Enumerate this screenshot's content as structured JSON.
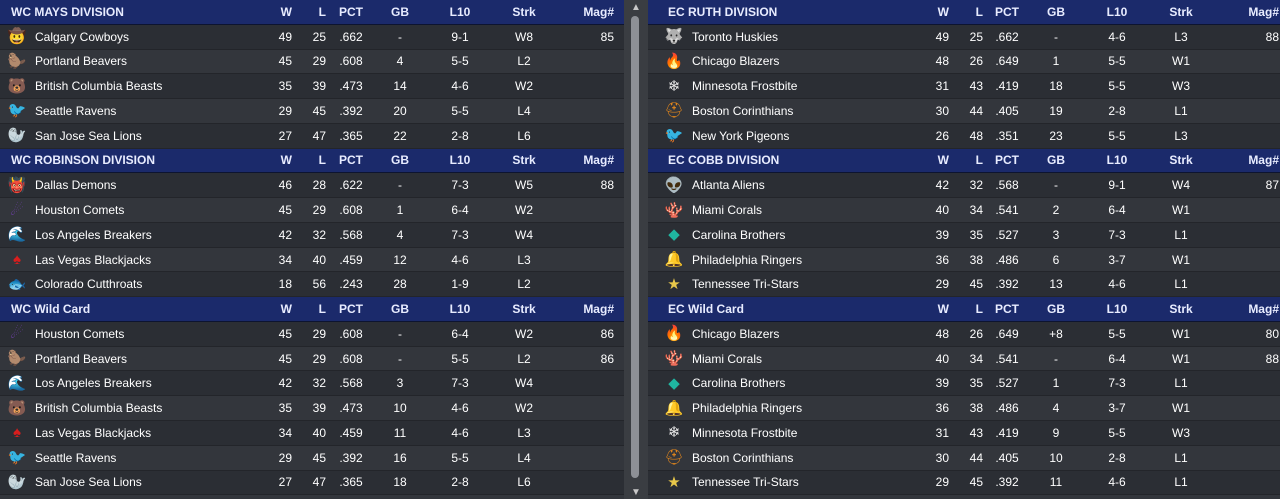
{
  "columns": {
    "w": "W",
    "l": "L",
    "pct": "PCT",
    "gb": "GB",
    "l10": "L10",
    "strk": "Strk",
    "mag": "Mag#"
  },
  "left_sections": [
    {
      "title": "WC MAYS DIVISION",
      "teams": [
        {
          "logo": "🤠",
          "name": "Calgary Cowboys",
          "w": "49",
          "l": "25",
          "pct": ".662",
          "gb": "-",
          "l10": "9-1",
          "strk": "W8",
          "mag": "85"
        },
        {
          "logo": "🦫",
          "name": "Portland Beavers",
          "w": "45",
          "l": "29",
          "pct": ".608",
          "gb": "4",
          "l10": "5-5",
          "strk": "L2",
          "mag": ""
        },
        {
          "logo": "🐻",
          "name": "British Columbia Beasts",
          "w": "35",
          "l": "39",
          "pct": ".473",
          "gb": "14",
          "l10": "4-6",
          "strk": "W2",
          "mag": ""
        },
        {
          "logo": "🐦",
          "name": "Seattle Ravens",
          "w": "29",
          "l": "45",
          "pct": ".392",
          "gb": "20",
          "l10": "5-5",
          "strk": "L4",
          "mag": ""
        },
        {
          "logo": "🦭",
          "name": "San Jose Sea Lions",
          "w": "27",
          "l": "47",
          "pct": ".365",
          "gb": "22",
          "l10": "2-8",
          "strk": "L6",
          "mag": ""
        }
      ]
    },
    {
      "title": "WC ROBINSON DIVISION",
      "teams": [
        {
          "logo": "👹",
          "name": "Dallas Demons",
          "w": "46",
          "l": "28",
          "pct": ".622",
          "gb": "-",
          "l10": "7-3",
          "strk": "W5",
          "mag": "88"
        },
        {
          "logo": "☄",
          "name": "Houston Comets",
          "w": "45",
          "l": "29",
          "pct": ".608",
          "gb": "1",
          "l10": "6-4",
          "strk": "W2",
          "mag": ""
        },
        {
          "logo": "🌊",
          "name": "Los Angeles Breakers",
          "w": "42",
          "l": "32",
          "pct": ".568",
          "gb": "4",
          "l10": "7-3",
          "strk": "W4",
          "mag": ""
        },
        {
          "logo": "♠",
          "name": "Las Vegas Blackjacks",
          "w": "34",
          "l": "40",
          "pct": ".459",
          "gb": "12",
          "l10": "4-6",
          "strk": "L3",
          "mag": ""
        },
        {
          "logo": "🐟",
          "name": "Colorado Cutthroats",
          "w": "18",
          "l": "56",
          "pct": ".243",
          "gb": "28",
          "l10": "1-9",
          "strk": "L2",
          "mag": ""
        }
      ]
    },
    {
      "title": "WC  Wild Card",
      "teams": [
        {
          "logo": "☄",
          "name": "Houston Comets",
          "w": "45",
          "l": "29",
          "pct": ".608",
          "gb": "-",
          "l10": "6-4",
          "strk": "W2",
          "mag": "86"
        },
        {
          "logo": "🦫",
          "name": "Portland Beavers",
          "w": "45",
          "l": "29",
          "pct": ".608",
          "gb": "-",
          "l10": "5-5",
          "strk": "L2",
          "mag": "86"
        },
        {
          "logo": "🌊",
          "name": "Los Angeles Breakers",
          "w": "42",
          "l": "32",
          "pct": ".568",
          "gb": "3",
          "l10": "7-3",
          "strk": "W4",
          "mag": ""
        },
        {
          "logo": "🐻",
          "name": "British Columbia Beasts",
          "w": "35",
          "l": "39",
          "pct": ".473",
          "gb": "10",
          "l10": "4-6",
          "strk": "W2",
          "mag": ""
        },
        {
          "logo": "♠",
          "name": "Las Vegas Blackjacks",
          "w": "34",
          "l": "40",
          "pct": ".459",
          "gb": "11",
          "l10": "4-6",
          "strk": "L3",
          "mag": ""
        },
        {
          "logo": "🐦",
          "name": "Seattle Ravens",
          "w": "29",
          "l": "45",
          "pct": ".392",
          "gb": "16",
          "l10": "5-5",
          "strk": "L4",
          "mag": ""
        },
        {
          "logo": "🦭",
          "name": "San Jose Sea Lions",
          "w": "27",
          "l": "47",
          "pct": ".365",
          "gb": "18",
          "l10": "2-8",
          "strk": "L6",
          "mag": ""
        },
        {
          "logo": "🐟",
          "name": "Colorado Cutthroats",
          "w": "18",
          "l": "56",
          "pct": ".243",
          "gb": "27",
          "l10": "1-9",
          "strk": "L2",
          "mag": ""
        }
      ]
    }
  ],
  "right_sections": [
    {
      "title": "EC RUTH DIVISION",
      "teams": [
        {
          "logo": "🐺",
          "name": "Toronto Huskies",
          "w": "49",
          "l": "25",
          "pct": ".662",
          "gb": "-",
          "l10": "4-6",
          "strk": "L3",
          "mag": "88"
        },
        {
          "logo": "🔥",
          "name": "Chicago Blazers",
          "w": "48",
          "l": "26",
          "pct": ".649",
          "gb": "1",
          "l10": "5-5",
          "strk": "W1",
          "mag": ""
        },
        {
          "logo": "❄",
          "name": "Minnesota Frostbite",
          "w": "31",
          "l": "43",
          "pct": ".419",
          "gb": "18",
          "l10": "5-5",
          "strk": "W3",
          "mag": ""
        },
        {
          "logo": "⛑",
          "name": "Boston Corinthians",
          "w": "30",
          "l": "44",
          "pct": ".405",
          "gb": "19",
          "l10": "2-8",
          "strk": "L1",
          "mag": ""
        },
        {
          "logo": "🐦",
          "name": "New York Pigeons",
          "w": "26",
          "l": "48",
          "pct": ".351",
          "gb": "23",
          "l10": "5-5",
          "strk": "L3",
          "mag": ""
        }
      ]
    },
    {
      "title": "EC COBB DIVISION",
      "teams": [
        {
          "logo": "👽",
          "name": "Atlanta Aliens",
          "w": "42",
          "l": "32",
          "pct": ".568",
          "gb": "-",
          "l10": "9-1",
          "strk": "W4",
          "mag": "87"
        },
        {
          "logo": "🪸",
          "name": "Miami Corals",
          "w": "40",
          "l": "34",
          "pct": ".541",
          "gb": "2",
          "l10": "6-4",
          "strk": "W1",
          "mag": ""
        },
        {
          "logo": "◆",
          "name": "Carolina Brothers",
          "w": "39",
          "l": "35",
          "pct": ".527",
          "gb": "3",
          "l10": "7-3",
          "strk": "L1",
          "mag": ""
        },
        {
          "logo": "🔔",
          "name": "Philadelphia Ringers",
          "w": "36",
          "l": "38",
          "pct": ".486",
          "gb": "6",
          "l10": "3-7",
          "strk": "W1",
          "mag": ""
        },
        {
          "logo": "★",
          "name": "Tennessee Tri-Stars",
          "w": "29",
          "l": "45",
          "pct": ".392",
          "gb": "13",
          "l10": "4-6",
          "strk": "L1",
          "mag": ""
        }
      ]
    },
    {
      "title": "EC  Wild Card",
      "teams": [
        {
          "logo": "🔥",
          "name": "Chicago Blazers",
          "w": "48",
          "l": "26",
          "pct": ".649",
          "gb": "+8",
          "l10": "5-5",
          "strk": "W1",
          "mag": "80"
        },
        {
          "logo": "🪸",
          "name": "Miami Corals",
          "w": "40",
          "l": "34",
          "pct": ".541",
          "gb": "-",
          "l10": "6-4",
          "strk": "W1",
          "mag": "88"
        },
        {
          "logo": "◆",
          "name": "Carolina Brothers",
          "w": "39",
          "l": "35",
          "pct": ".527",
          "gb": "1",
          "l10": "7-3",
          "strk": "L1",
          "mag": ""
        },
        {
          "logo": "🔔",
          "name": "Philadelphia Ringers",
          "w": "36",
          "l": "38",
          "pct": ".486",
          "gb": "4",
          "l10": "3-7",
          "strk": "W1",
          "mag": ""
        },
        {
          "logo": "❄",
          "name": "Minnesota Frostbite",
          "w": "31",
          "l": "43",
          "pct": ".419",
          "gb": "9",
          "l10": "5-5",
          "strk": "W3",
          "mag": ""
        },
        {
          "logo": "⛑",
          "name": "Boston Corinthians",
          "w": "30",
          "l": "44",
          "pct": ".405",
          "gb": "10",
          "l10": "2-8",
          "strk": "L1",
          "mag": ""
        },
        {
          "logo": "★",
          "name": "Tennessee Tri-Stars",
          "w": "29",
          "l": "45",
          "pct": ".392",
          "gb": "11",
          "l10": "4-6",
          "strk": "L1",
          "mag": ""
        },
        {
          "logo": "🐦",
          "name": "New York Pigeons",
          "w": "26",
          "l": "48",
          "pct": ".351",
          "gb": "14",
          "l10": "5-5",
          "strk": "L3",
          "mag": ""
        }
      ]
    }
  ],
  "logo_colors": {
    "Calgary Cowboys": "#3fb6c8",
    "Portland Beavers": "#e05a1e",
    "British Columbia Beasts": "#888888",
    "Seattle Ravens": "#c43fc6",
    "San Jose Sea Lions": "#2c3a7a",
    "Dallas Demons": "#b3121b",
    "Houston Comets": "#6a3fa0",
    "Los Angeles Breakers": "#2aa8c8",
    "Las Vegas Blackjacks": "#d81e1e",
    "Colorado Cutthroats": "#7a9a3a",
    "Toronto Huskies": "#b0b0b0",
    "Chicago Blazers": "#e8521c",
    "Minnesota Frostbite": "#e8e8e8",
    "Boston Corinthians": "#e0851c",
    "New York Pigeons": "#9a9a9a",
    "Atlanta Aliens": "#3fd24a",
    "Miami Corals": "#e06a3a",
    "Carolina Brothers": "#1fb5a0",
    "Philadelphia Ringers": "#c9952b",
    "Tennessee Tri-Stars": "#e8c84a"
  },
  "scrollbar": {
    "up_icon": "▲",
    "down_icon": "▼"
  }
}
